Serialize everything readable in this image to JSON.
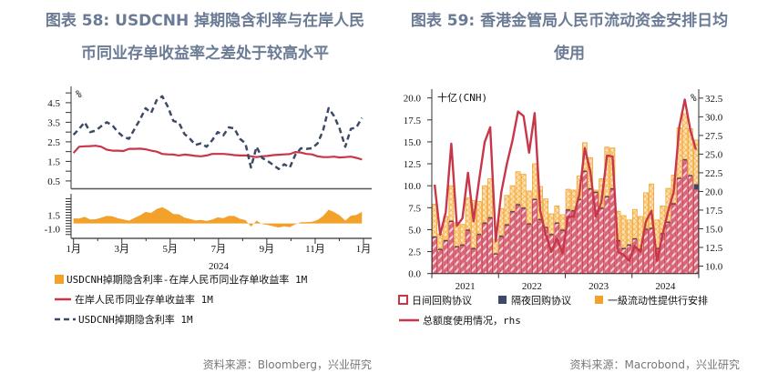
{
  "colors": {
    "title": "#6b7b95",
    "red": "#c8364a",
    "navy": "#3d4a66",
    "orange": "#f2a22a",
    "pink": "#e3a0ac"
  },
  "chart_data": [
    {
      "type": "line",
      "title": "图表 58: USDCNH 掉期隐含利率与在岸人民币同业存单收益率之差处于较高水平",
      "title_lines": [
        "图表 58: USDCNH 掉期隐含利率与在岸人民",
        "币同业存单收益率之差处于较高水平"
      ],
      "unit": "%",
      "xlabel": "2024",
      "x_tick_labels": [
        "1月",
        "3月",
        "5月",
        "7月",
        "9月",
        "11月",
        "1月"
      ],
      "upper_y_tick_labels": [
        "0.5",
        "1.5",
        "2.5",
        "3.5",
        "4.5"
      ],
      "lower_y_tick_labels": [
        "1.5",
        "-1.0"
      ],
      "upper_ylim": [
        0.1,
        5.1
      ],
      "lower_ylim": [
        -2.7,
        5.4
      ],
      "x": [
        "2024-01-01",
        "2024-01-08",
        "2024-01-15",
        "2024-01-22",
        "2024-01-29",
        "2024-02-05",
        "2024-02-12",
        "2024-02-19",
        "2024-02-26",
        "2024-03-04",
        "2024-03-11",
        "2024-03-18",
        "2024-03-25",
        "2024-04-01",
        "2024-04-08",
        "2024-04-15",
        "2024-04-22",
        "2024-04-29",
        "2024-05-06",
        "2024-05-13",
        "2024-05-20",
        "2024-05-27",
        "2024-06-03",
        "2024-06-10",
        "2024-06-17",
        "2024-06-24",
        "2024-07-01",
        "2024-07-08",
        "2024-07-15",
        "2024-07-22",
        "2024-07-29",
        "2024-08-05",
        "2024-08-12",
        "2024-08-19",
        "2024-08-26",
        "2024-09-02",
        "2024-09-09",
        "2024-09-16",
        "2024-09-23",
        "2024-09-30",
        "2024-10-07",
        "2024-10-14",
        "2024-10-21",
        "2024-10-28",
        "2024-11-04",
        "2024-11-11",
        "2024-11-18",
        "2024-11-25",
        "2024-12-02",
        "2024-12-09",
        "2024-12-16",
        "2024-12-23",
        "2024-12-30"
      ],
      "series": [
        {
          "name": "USDCNH掉期隐含利率-在岸人民币同业存单收益率 1M",
          "panel": "lower",
          "style": "area",
          "color": "#f2a22a",
          "values": [
            0.93,
            0.91,
            1.23,
            0.72,
            0.77,
            1.05,
            1.4,
            1.3,
            0.95,
            0.72,
            0.52,
            1.02,
            1.5,
            2.1,
            1.93,
            2.63,
            2.95,
            2.44,
            1.72,
            1.68,
            1.05,
            0.84,
            0.56,
            0.66,
            0.45,
            0.7,
            1.12,
            0.95,
            1.38,
            1.37,
            0.86,
            0.62,
            -0.57,
            0.53,
            -0.08,
            -0.26,
            -0.5,
            -0.73,
            -0.51,
            -0.68,
            -0.14,
            0.22,
            0.26,
            0.31,
            0.66,
            1.35,
            2.5,
            2.07,
            1.46,
            0.53,
            1.42,
            1.56,
            2.13
          ]
        },
        {
          "name": "在岸人民币同业存单收益率 1M",
          "panel": "upper",
          "style": "solid",
          "color": "#c8364a",
          "values": [
            1.93,
            2.25,
            2.27,
            2.28,
            2.3,
            2.25,
            2.1,
            2.05,
            2.05,
            2.03,
            2.14,
            2.14,
            2.15,
            2.12,
            2.05,
            2.0,
            1.88,
            1.86,
            1.85,
            1.8,
            1.85,
            1.82,
            1.78,
            1.76,
            1.8,
            1.88,
            1.88,
            1.88,
            1.86,
            1.82,
            1.8,
            1.8,
            1.76,
            1.72,
            1.76,
            1.78,
            1.82,
            1.84,
            1.86,
            1.87,
            1.98,
            1.95,
            1.88,
            1.86,
            1.76,
            1.72,
            1.72,
            1.74,
            1.7,
            1.72,
            1.74,
            1.68,
            1.6
          ]
        },
        {
          "name": "USDCNH掉期隐含利率 1M",
          "panel": "upper",
          "style": "dashed",
          "color": "#3d4a66",
          "values": [
            2.86,
            3.16,
            3.5,
            3.0,
            3.07,
            3.3,
            3.5,
            3.35,
            3.0,
            2.75,
            2.66,
            3.16,
            3.65,
            4.22,
            3.98,
            4.63,
            4.83,
            4.3,
            3.57,
            3.48,
            2.9,
            2.66,
            2.34,
            2.42,
            2.25,
            2.58,
            3.0,
            2.83,
            3.24,
            3.19,
            2.66,
            2.42,
            1.19,
            2.25,
            1.68,
            1.52,
            1.32,
            1.11,
            1.35,
            1.19,
            1.84,
            2.17,
            2.14,
            2.17,
            2.42,
            3.07,
            4.22,
            3.81,
            3.16,
            2.25,
            3.16,
            3.24,
            3.73
          ]
        }
      ],
      "legend_position": "bottom",
      "source": "资料来源：Bloomberg，兴业研究"
    },
    {
      "type": "bar",
      "stacked": true,
      "title": "图表 59: 香港金管局人民币流动资金安排日均使用",
      "title_lines": [
        "图表 59: 香港金管局人民币流动资金安排日均",
        "使用"
      ],
      "left_unit": "十亿(CNH)",
      "right_unit": "%",
      "x_tick_labels": [
        "2021",
        "2022",
        "2023",
        "2024"
      ],
      "left_y_tick_labels": [
        "0.0",
        "2.5",
        "5.0",
        "7.5",
        "10.0",
        "12.5",
        "15.0",
        "17.5",
        "20.0"
      ],
      "right_y_tick_labels": [
        "10.0",
        "12.5",
        "15.0",
        "17.5",
        "20.0",
        "22.5",
        "25.0",
        "27.5",
        "30.0",
        "32.5"
      ],
      "ylim": [
        0,
        21
      ],
      "y2lim": [
        9.0,
        33.7
      ],
      "categories": [
        "2021-01",
        "2021-02",
        "2021-03",
        "2021-04",
        "2021-05",
        "2021-06",
        "2021-07",
        "2021-08",
        "2021-09",
        "2021-10",
        "2021-11",
        "2021-12",
        "2022-01",
        "2022-02",
        "2022-03",
        "2022-04",
        "2022-05",
        "2022-06",
        "2022-07",
        "2022-08",
        "2022-09",
        "2022-10",
        "2022-11",
        "2022-12",
        "2023-01",
        "2023-02",
        "2023-03",
        "2023-04",
        "2023-05",
        "2023-06",
        "2023-07",
        "2023-08",
        "2023-09",
        "2023-10",
        "2023-11",
        "2023-12",
        "2024-01",
        "2024-02",
        "2024-03",
        "2024-04",
        "2024-05",
        "2024-06",
        "2024-07",
        "2024-08",
        "2024-09",
        "2024-10",
        "2024-11",
        "2024-12"
      ],
      "series": [
        {
          "name": "日间回购协议",
          "axis": "left",
          "color": "#c8364a",
          "values": [
            4.1,
            2.7,
            3.7,
            5.9,
            3.0,
            3.2,
            4.9,
            2.8,
            4.4,
            5.7,
            6.3,
            2.2,
            4.2,
            5.5,
            7.0,
            7.8,
            7.4,
            5.6,
            8.4,
            6.1,
            5.2,
            4.4,
            5.7,
            4.9,
            7.2,
            7.1,
            8.4,
            11.6,
            9.6,
            9.2,
            7.4,
            8.7,
            9.6,
            3.7,
            2.8,
            3.2,
            3.9,
            2.7,
            5.0,
            5.1,
            2.8,
            4.5,
            5.8,
            7.9,
            10.8,
            12.9,
            11.1,
            9.6
          ]
        },
        {
          "name": "隔夜回购协议",
          "axis": "left",
          "color": "#3d4a66",
          "values": [
            0.15,
            0.15,
            0.15,
            0.15,
            0.15,
            0.15,
            0.15,
            0.15,
            0.15,
            0.15,
            0.15,
            0.15,
            0.15,
            0.15,
            0.15,
            0.15,
            0.15,
            0.15,
            0.15,
            0.15,
            0.15,
            0.15,
            0.15,
            0.15,
            0.15,
            0.15,
            0.15,
            0.15,
            0.15,
            0.15,
            0.15,
            0.15,
            0.15,
            0.15,
            0.15,
            0.15,
            0.15,
            0.15,
            0.15,
            0.15,
            0.15,
            0.15,
            0.15,
            0.15,
            0.15,
            0.15,
            0.15,
            0.6
          ]
        },
        {
          "name": "一級流动性提供行安排",
          "axis": "left",
          "color": "#f2a22a",
          "values": [
            3.65,
            1.65,
            2.65,
            3.95,
            2.65,
            2.25,
            3.55,
            5.35,
            3.65,
            4.15,
            4.35,
            1.55,
            3.05,
            3.25,
            2.85,
            3.65,
            3.75,
            3.65,
            3.95,
            3.65,
            3.15,
            2.25,
            1.85,
            1.65,
            2.25,
            2.25,
            2.55,
            3.15,
            3.45,
            0.15,
            3.25,
            5.55,
            4.55,
            3.25,
            3.65,
            2.75,
            3.25,
            3.65,
            4.05,
            4.95,
            3.15,
            3.05,
            3.75,
            3.15,
            5.65,
            5.15,
            5.25,
            5.0
          ]
        },
        {
          "name": "总额度使用情况，rhs",
          "axis": "right",
          "type": "line",
          "color": "#c8364a",
          "values": [
            20.9,
            14.2,
            17.2,
            26.4,
            15.4,
            16.4,
            22.5,
            16.0,
            21.5,
            26.6,
            28.6,
            13.3,
            19.9,
            23.7,
            26.8,
            30.7,
            30.1,
            25.2,
            30.5,
            17.4,
            14.2,
            11.9,
            13.7,
            11.7,
            16.6,
            16.6,
            19.5,
            25.8,
            22.7,
            16.6,
            18.6,
            24.8,
            24.7,
            11.9,
            11.5,
            10.7,
            12.7,
            11.9,
            16.0,
            17.4,
            10.7,
            14.2,
            17.4,
            19.9,
            28.6,
            32.3,
            28.2,
            25.6
          ]
        }
      ],
      "legend_position": "bottom",
      "source": "资料来源：Macrobond，兴业研究"
    }
  ]
}
